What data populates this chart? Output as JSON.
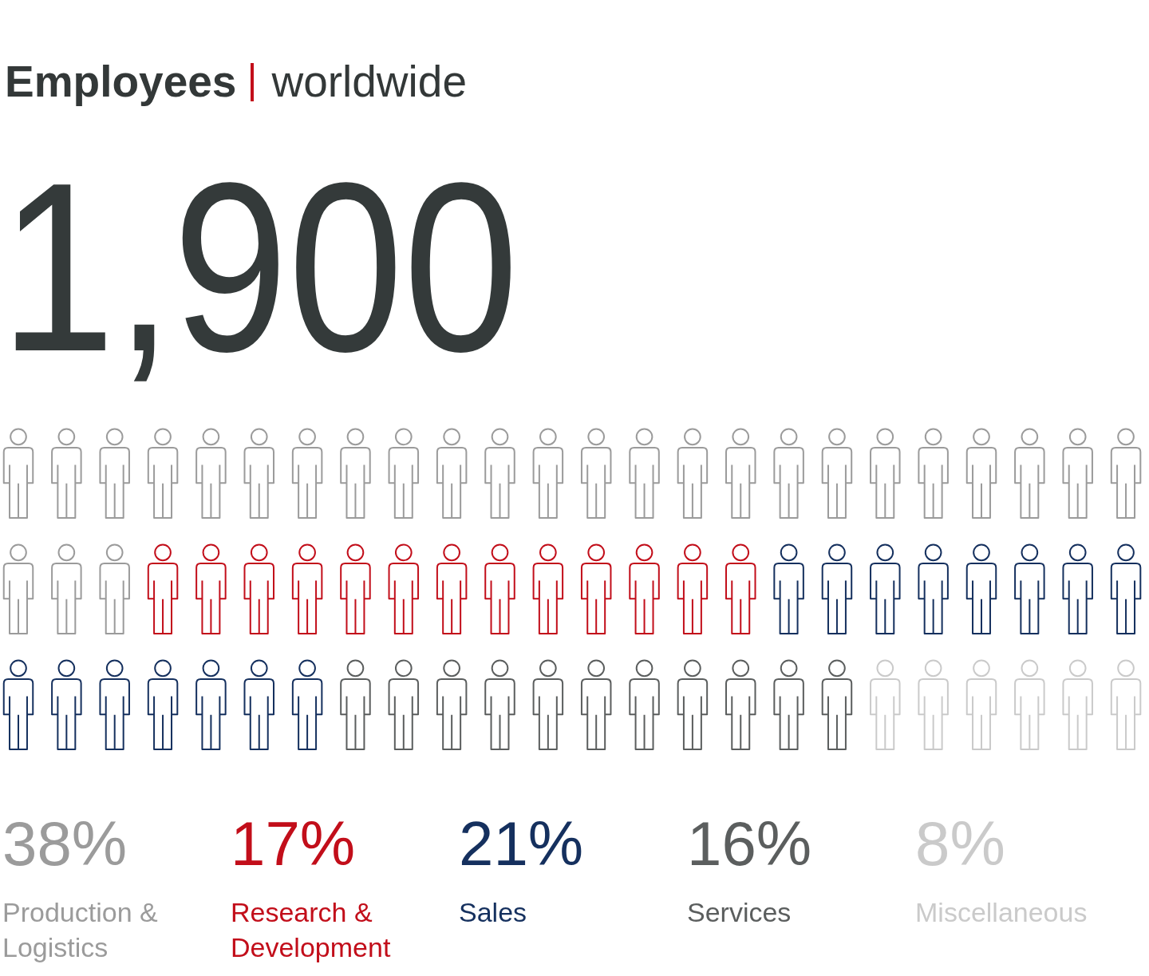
{
  "chart_data": {
    "type": "other",
    "title": "Employees",
    "subtitle": "worldwide",
    "annotations": [
      "1,900"
    ],
    "categories": [
      "Production & Logistics",
      "Research & Development",
      "Sales",
      "Services",
      "Miscellaneous"
    ],
    "values": [
      38,
      17,
      21,
      16,
      8
    ],
    "value_labels": [
      "38%",
      "17%",
      "21%",
      "16%",
      "8%"
    ],
    "colors": [
      "#9b9b9b",
      "#c20e1a",
      "#15305e",
      "#5b5e5e",
      "#cacaca"
    ]
  }
}
